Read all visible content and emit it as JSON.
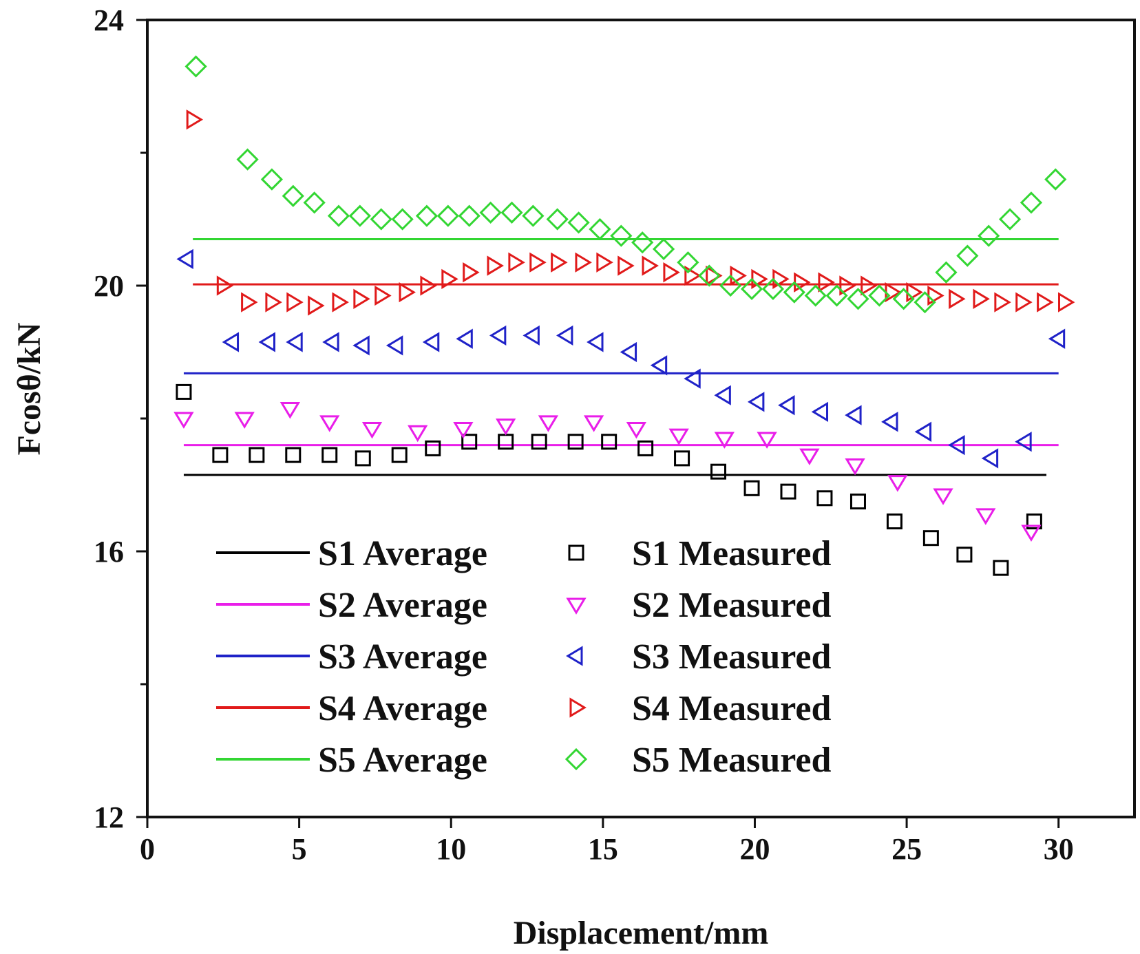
{
  "chart_data": {
    "type": "scatter",
    "title": "",
    "xlabel": "Displacement/mm",
    "ylabel": "Fcosθ/kN",
    "xlim": [
      0,
      32.5
    ],
    "ylim": [
      12,
      24
    ],
    "xticks": [
      0,
      5,
      10,
      15,
      20,
      25,
      30
    ],
    "yticks_labeled": [
      12,
      16,
      20,
      24
    ],
    "yticks_minor": [
      14,
      18,
      22
    ],
    "grid": false,
    "legend_position": "bottom-left",
    "series": [
      {
        "name": "S1",
        "color": "#000000",
        "marker": "square",
        "average_label": "S1 Average",
        "measured_label": "S1 Measured",
        "average": 17.15,
        "average_x": [
          1.2,
          29.6
        ],
        "x": [
          1.2,
          2.4,
          3.6,
          4.8,
          6.0,
          7.1,
          8.3,
          9.4,
          10.6,
          11.8,
          12.9,
          14.1,
          15.2,
          16.4,
          17.6,
          18.8,
          19.9,
          21.1,
          22.3,
          23.4,
          24.6,
          25.8,
          26.9,
          28.1,
          29.2
        ],
        "y": [
          18.4,
          17.45,
          17.45,
          17.45,
          17.45,
          17.4,
          17.45,
          17.55,
          17.65,
          17.65,
          17.65,
          17.65,
          17.65,
          17.55,
          17.4,
          17.2,
          16.95,
          16.9,
          16.8,
          16.75,
          16.45,
          16.2,
          15.95,
          15.75,
          16.45
        ]
      },
      {
        "name": "S2",
        "color": "#e91ee9",
        "marker": "triangle-down",
        "average_label": "S2 Average",
        "measured_label": "S2 Measured",
        "average": 17.6,
        "average_x": [
          1.2,
          30.0
        ],
        "x": [
          1.2,
          3.2,
          4.7,
          6.0,
          7.4,
          8.9,
          10.4,
          11.8,
          13.2,
          14.7,
          16.1,
          17.5,
          19.0,
          20.4,
          21.8,
          23.3,
          24.7,
          26.2,
          27.6,
          29.1
        ],
        "y": [
          18.0,
          18.0,
          18.15,
          17.95,
          17.85,
          17.8,
          17.85,
          17.9,
          17.95,
          17.95,
          17.85,
          17.75,
          17.7,
          17.7,
          17.45,
          17.3,
          17.05,
          16.85,
          16.55,
          16.3
        ]
      },
      {
        "name": "S3",
        "color": "#1f22c8",
        "marker": "triangle-left",
        "average_label": "S3 Average",
        "measured_label": "S3 Measured",
        "average": 18.68,
        "average_x": [
          1.2,
          30.0
        ],
        "x": [
          1.3,
          2.8,
          4.0,
          4.9,
          6.1,
          7.1,
          8.2,
          9.4,
          10.5,
          11.6,
          12.7,
          13.8,
          14.8,
          15.9,
          16.9,
          18.0,
          19.0,
          20.1,
          21.1,
          22.2,
          23.3,
          24.5,
          25.6,
          26.7,
          27.8,
          28.9,
          30.0
        ],
        "y": [
          20.4,
          19.15,
          19.15,
          19.15,
          19.15,
          19.1,
          19.1,
          19.15,
          19.2,
          19.25,
          19.25,
          19.25,
          19.15,
          19.0,
          18.8,
          18.6,
          18.35,
          18.25,
          18.2,
          18.1,
          18.05,
          17.95,
          17.8,
          17.6,
          17.4,
          17.65,
          19.2
        ]
      },
      {
        "name": "S4",
        "color": "#e11a1a",
        "marker": "triangle-right",
        "average_label": "S4 Average",
        "measured_label": "S4 Measured",
        "average": 20.02,
        "average_x": [
          1.5,
          30.0
        ],
        "x": [
          1.5,
          2.5,
          3.3,
          4.1,
          4.8,
          5.5,
          6.3,
          7.0,
          7.7,
          8.5,
          9.2,
          9.9,
          10.6,
          11.4,
          12.1,
          12.8,
          13.5,
          14.3,
          15.0,
          15.7,
          16.5,
          17.2,
          17.9,
          18.6,
          19.4,
          20.1,
          20.8,
          21.5,
          22.3,
          23.0,
          23.7,
          24.5,
          25.2,
          25.9,
          26.6,
          27.4,
          28.1,
          28.8,
          29.5,
          30.2
        ],
        "y": [
          22.5,
          20.0,
          19.75,
          19.75,
          19.75,
          19.7,
          19.75,
          19.8,
          19.85,
          19.9,
          20.0,
          20.1,
          20.2,
          20.3,
          20.35,
          20.35,
          20.35,
          20.35,
          20.35,
          20.3,
          20.3,
          20.2,
          20.15,
          20.15,
          20.15,
          20.1,
          20.1,
          20.05,
          20.05,
          20.0,
          20.0,
          19.9,
          19.9,
          19.85,
          19.8,
          19.8,
          19.75,
          19.75,
          19.75,
          19.75
        ]
      },
      {
        "name": "S5",
        "color": "#33d633",
        "marker": "diamond",
        "average_label": "S5 Average",
        "measured_label": "S5 Measured",
        "average": 20.7,
        "average_x": [
          1.5,
          30.0
        ],
        "x": [
          1.6,
          3.3,
          4.1,
          4.8,
          5.5,
          6.3,
          7.0,
          7.7,
          8.4,
          9.2,
          9.9,
          10.6,
          11.3,
          12.0,
          12.7,
          13.5,
          14.2,
          14.9,
          15.6,
          16.3,
          17.0,
          17.8,
          18.5,
          19.2,
          19.9,
          20.6,
          21.3,
          22.0,
          22.7,
          23.4,
          24.1,
          24.9,
          25.6,
          26.3,
          27.0,
          27.7,
          28.4,
          29.1,
          29.9
        ],
        "y": [
          23.3,
          21.9,
          21.6,
          21.35,
          21.25,
          21.05,
          21.05,
          21.0,
          21.0,
          21.05,
          21.05,
          21.05,
          21.1,
          21.1,
          21.05,
          21.0,
          20.95,
          20.85,
          20.75,
          20.65,
          20.55,
          20.35,
          20.15,
          20.0,
          19.95,
          19.95,
          19.9,
          19.85,
          19.85,
          19.8,
          19.85,
          19.8,
          19.75,
          20.2,
          20.45,
          20.75,
          21.0,
          21.25,
          21.6
        ]
      }
    ]
  }
}
